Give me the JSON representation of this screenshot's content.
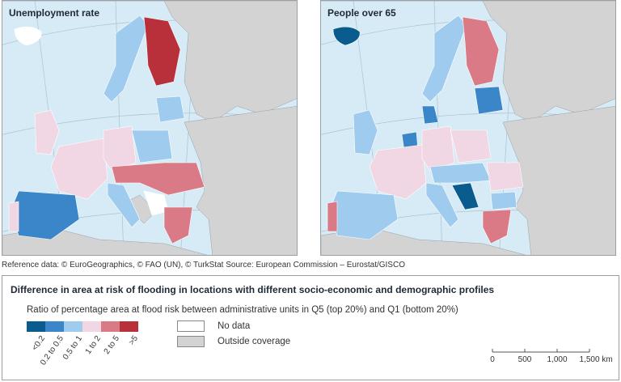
{
  "maps": [
    {
      "title": "Unemployment rate"
    },
    {
      "title": "People over 65"
    }
  ],
  "reference_note": "Reference data: © EuroGeographics, © FAO (UN), © TurkStat Source: European Commission – Eurostat/GISCO",
  "legend": {
    "title": "Difference in area at risk of flooding in locations with different socio-economic and demographic profiles",
    "subtitle": "Ratio of percentage area at flood risk between administrative units in Q5 (top 20%) and Q1 (bottom 20%)",
    "classes": [
      {
        "label": "<0.2",
        "color": "#0b5c8e"
      },
      {
        "label": "0.2 to 0.5",
        "color": "#3a86c8"
      },
      {
        "label": "0.5 to 1",
        "color": "#9fcbee"
      },
      {
        "label": "1 to 2",
        "color": "#f1d6e4"
      },
      {
        "label": "2 to 5",
        "color": "#d97a86"
      },
      {
        "label": ">5",
        "color": "#b8303a"
      }
    ],
    "no_data": {
      "label": "No data",
      "color": "#ffffff"
    },
    "outside": {
      "label": "Outside coverage",
      "color": "#d3d3d3"
    }
  },
  "scale": {
    "ticks": [
      "0",
      "500",
      "1,000",
      "1,500"
    ],
    "unit": "km"
  },
  "colors": {
    "sea": "#d6ebf5",
    "grid": "#a9c3d2",
    "land_outside": "#d3d3d3"
  }
}
